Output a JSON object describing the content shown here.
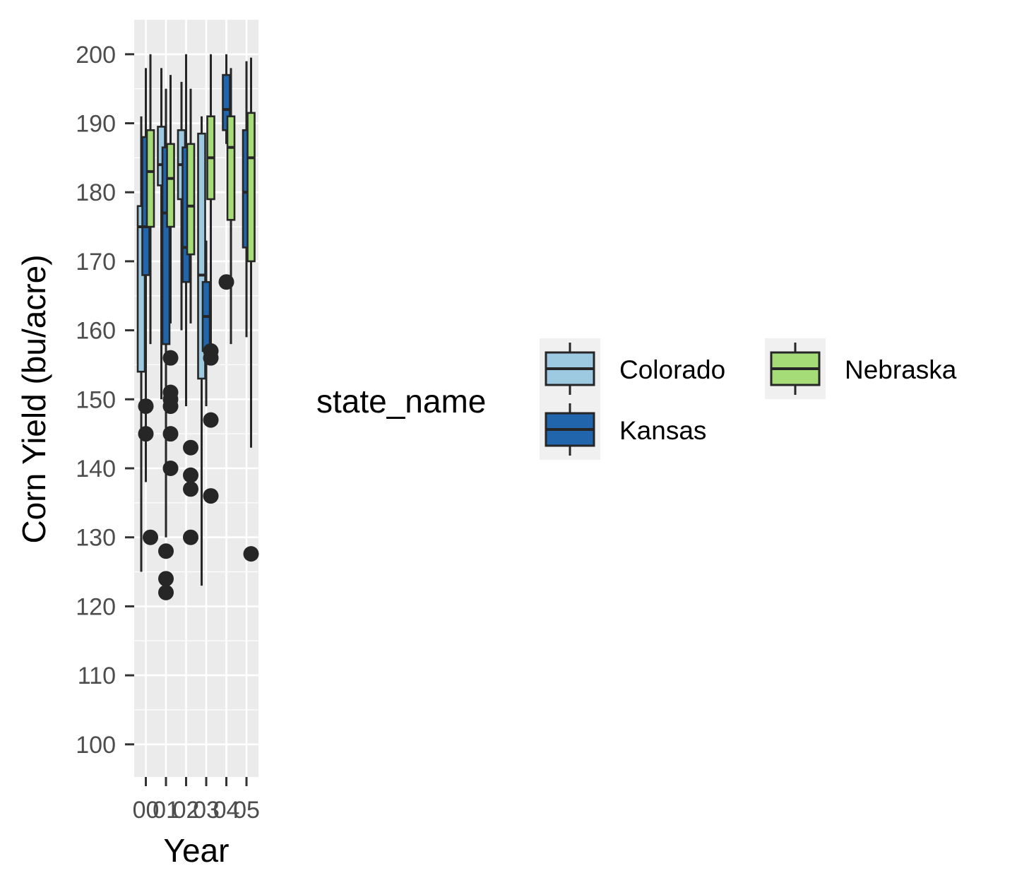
{
  "chart_data": {
    "type": "box",
    "xlabel": "Year",
    "ylabel": "Corn Yield (bu/acre)",
    "ylim": [
      95,
      205
    ],
    "yticks": [
      100,
      110,
      120,
      130,
      140,
      150,
      160,
      170,
      180,
      190,
      200
    ],
    "categories": [
      "00",
      "01",
      "02",
      "03",
      "04",
      "05"
    ],
    "grid": true,
    "legend": {
      "title": "state_name",
      "placement": "right",
      "entries": [
        {
          "name": "Colorado",
          "color": "#9ecae1"
        },
        {
          "name": "Kansas",
          "color": "#2166ac"
        },
        {
          "name": "Nebraska",
          "color": "#a6dc78"
        }
      ]
    },
    "series": [
      {
        "name": "Colorado",
        "color": "#9ecae1",
        "boxes": [
          {
            "x": "00",
            "lower_whisker": 125,
            "q1": 154,
            "median": 175,
            "q3": 178,
            "upper_whisker": 191,
            "outliers": []
          },
          {
            "x": "01",
            "lower_whisker": 150,
            "q1": 181,
            "median": 184,
            "q3": 189.5,
            "upper_whisker": 198,
            "outliers": []
          },
          {
            "x": "02",
            "lower_whisker": 160,
            "q1": 179,
            "median": 184,
            "q3": 189,
            "upper_whisker": 196,
            "outliers": []
          },
          {
            "x": "03",
            "lower_whisker": 123,
            "q1": 153,
            "median": 168,
            "q3": 188.5,
            "upper_whisker": 191,
            "outliers": []
          }
        ]
      },
      {
        "name": "Kansas",
        "color": "#2166ac",
        "boxes": [
          {
            "x": "00",
            "lower_whisker": 138,
            "q1": 168,
            "median": 175,
            "q3": 188,
            "upper_whisker": 198,
            "outliers": [
              149,
              145
            ]
          },
          {
            "x": "01",
            "lower_whisker": 130,
            "q1": 158,
            "median": 177,
            "q3": 186.5,
            "upper_whisker": 195,
            "outliers": [
              128,
              124,
              122
            ]
          },
          {
            "x": "02",
            "lower_whisker": 149,
            "q1": 167,
            "median": 172,
            "q3": 186.5,
            "upper_whisker": 200,
            "outliers": []
          },
          {
            "x": "03",
            "lower_whisker": 149,
            "q1": 157,
            "median": 162,
            "q3": 167,
            "upper_whisker": 173,
            "outliers": []
          },
          {
            "x": "04",
            "lower_whisker": 187,
            "q1": 189,
            "median": 192,
            "q3": 197,
            "upper_whisker": 200,
            "outliers": [
              167
            ]
          },
          {
            "x": "05",
            "lower_whisker": 159,
            "q1": 172,
            "median": 180,
            "q3": 189,
            "upper_whisker": 199,
            "outliers": []
          }
        ]
      },
      {
        "name": "Nebraska",
        "color": "#a6dc78",
        "boxes": [
          {
            "x": "00",
            "lower_whisker": 158,
            "q1": 175,
            "median": 183,
            "q3": 189,
            "upper_whisker": 200,
            "outliers": [
              130
            ]
          },
          {
            "x": "01",
            "lower_whisker": 161,
            "q1": 175,
            "median": 182,
            "q3": 187,
            "upper_whisker": 197,
            "outliers": [
              156,
              151,
              150,
              149,
              145,
              140
            ]
          },
          {
            "x": "02",
            "lower_whisker": 161,
            "q1": 171,
            "median": 178,
            "q3": 187,
            "upper_whisker": 195,
            "outliers": [
              143,
              139,
              137,
              130
            ]
          },
          {
            "x": "03",
            "lower_whisker": 158,
            "q1": 179,
            "median": 185,
            "q3": 191,
            "upper_whisker": 200,
            "outliers": [
              157,
              156,
              147,
              136
            ]
          },
          {
            "x": "04",
            "lower_whisker": 158,
            "q1": 176,
            "median": 186.5,
            "q3": 191,
            "upper_whisker": 198,
            "outliers": []
          },
          {
            "x": "05",
            "lower_whisker": 143,
            "q1": 170,
            "median": 185,
            "q3": 191.5,
            "upper_whisker": 199.5,
            "outliers": [
              127.6
            ]
          }
        ]
      }
    ]
  }
}
